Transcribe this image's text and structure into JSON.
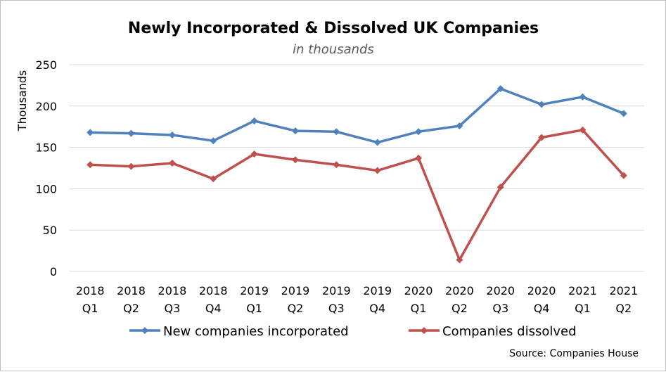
{
  "chart_data": {
    "type": "line",
    "title": "Newly Incorporated & Dissolved UK Companies",
    "subtitle": "in thousands",
    "xlabel": "",
    "ylabel": "Thousands",
    "ylim": [
      0,
      250
    ],
    "yticks": [
      "0",
      "50",
      "100",
      "150",
      "200",
      "250"
    ],
    "ytick_values": [
      0,
      50,
      100,
      150,
      200,
      250
    ],
    "grid": true,
    "legend_position": "bottom",
    "categories": [
      [
        "2018",
        "Q1"
      ],
      [
        "2018",
        "Q2"
      ],
      [
        "2018",
        "Q3"
      ],
      [
        "2018",
        "Q4"
      ],
      [
        "2019",
        "Q1"
      ],
      [
        "2019",
        "Q2"
      ],
      [
        "2019",
        "Q3"
      ],
      [
        "2019",
        "Q4"
      ],
      [
        "2020",
        "Q1"
      ],
      [
        "2020",
        "Q2"
      ],
      [
        "2020",
        "Q3"
      ],
      [
        "2020",
        "Q4"
      ],
      [
        "2021",
        "Q1"
      ],
      [
        "2021",
        "Q2"
      ]
    ],
    "series": [
      {
        "name": "New companies incorporated",
        "color": "#4f81bd",
        "values": [
          168,
          167,
          165,
          158,
          182,
          170,
          169,
          156,
          169,
          176,
          221,
          202,
          211,
          191
        ]
      },
      {
        "name": "Companies dissolved",
        "color": "#c0504d",
        "values": [
          129,
          127,
          131,
          112,
          142,
          135,
          129,
          122,
          137,
          14,
          102,
          162,
          171,
          116
        ]
      }
    ],
    "source": "Source: Companies House"
  }
}
